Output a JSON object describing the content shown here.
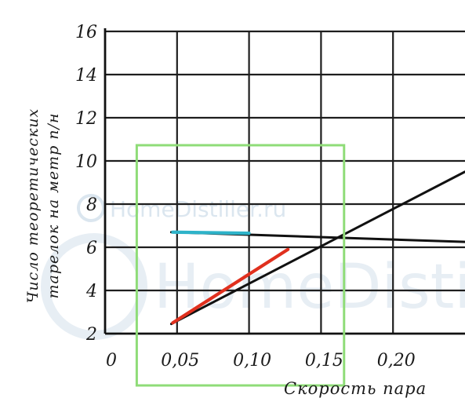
{
  "chart_data": {
    "type": "line",
    "title": "",
    "xlabel": "Скорость пара",
    "ylabel_lines": [
      "Число теоретических",
      "тарелок на метр п/н"
    ],
    "xlim": [
      0,
      0.25
    ],
    "ylim": [
      2,
      16
    ],
    "x_tick_labels": [
      "0",
      "0,05",
      "0,10",
      "0,15",
      "0,20"
    ],
    "x_ticks": [
      0,
      0.05,
      0.1,
      0.15,
      0.2
    ],
    "y_tick_labels": [
      "2",
      "4",
      "6",
      "8",
      "10",
      "12",
      "14",
      "16"
    ],
    "y_ticks": [
      2,
      4,
      6,
      8,
      10,
      12,
      14,
      16
    ],
    "grid": true,
    "series": [
      {
        "color": "#111111",
        "x": [
          0.046,
          0.25
        ],
        "y": [
          6.7,
          6.25
        ]
      },
      {
        "color": "#111111",
        "x": [
          0.046,
          0.25
        ],
        "y": [
          2.45,
          9.5
        ]
      },
      {
        "color": "#2eb3c9",
        "x": [
          0.047,
          0.1
        ],
        "y": [
          6.7,
          6.65
        ]
      },
      {
        "color": "#e0301e",
        "x": [
          0.047,
          0.127
        ],
        "y": [
          2.5,
          5.9
        ]
      }
    ],
    "highlight_box": {
      "color": "#8fdc78",
      "x": [
        0.022,
        0.166
      ]
    },
    "watermark": {
      "text_small": "HomeDistiller.ru",
      "text_big": "HomeDistil"
    }
  }
}
